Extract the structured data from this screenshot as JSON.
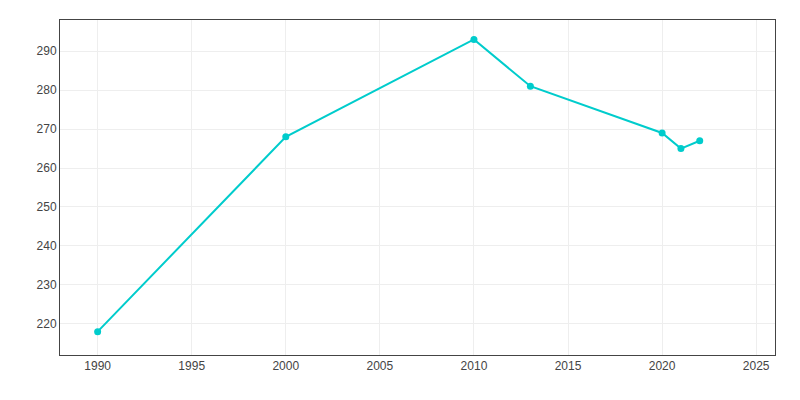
{
  "chart_data": {
    "type": "line",
    "x": [
      1990,
      2000,
      2010,
      2013,
      2020,
      2021,
      2022
    ],
    "values": [
      218,
      268,
      293,
      281,
      269,
      265,
      267
    ],
    "color": "#00CCCC",
    "marker": "circle",
    "xlim": [
      1988,
      2026
    ],
    "ylim": [
      212,
      298
    ],
    "xticks": [
      1990,
      1995,
      2000,
      2005,
      2010,
      2015,
      2020,
      2025
    ],
    "yticks": [
      220,
      230,
      240,
      250,
      260,
      270,
      280,
      290
    ],
    "grid": true
  }
}
